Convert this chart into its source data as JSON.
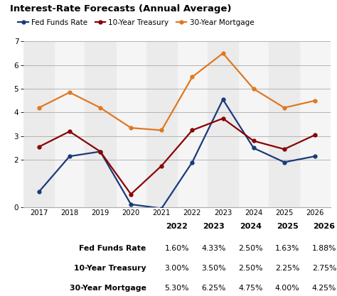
{
  "title": "Interest-Rate Forecasts (Annual Average)",
  "years": [
    2017,
    2018,
    2019,
    2020,
    2021,
    2022,
    2023,
    2024,
    2025,
    2026
  ],
  "fed_funds": [
    0.65,
    2.15,
    2.35,
    0.12,
    -0.05,
    1.9,
    4.55,
    2.5,
    1.9,
    2.15
  ],
  "treasury_10y": [
    2.55,
    3.2,
    2.35,
    0.55,
    1.75,
    3.25,
    3.75,
    2.8,
    2.45,
    3.05
  ],
  "mortgage_30y": [
    4.2,
    4.85,
    4.2,
    3.35,
    3.25,
    5.5,
    6.5,
    5.0,
    4.2,
    4.5
  ],
  "fed_color": "#1a3a7a",
  "treasury_color": "#8b0000",
  "mortgage_color": "#e07820",
  "bg_color": "#ebebeb",
  "stripe_color": "#d0d0d0",
  "white_color": "#f5f5f5",
  "ylim": [
    0,
    7
  ],
  "yticks": [
    0,
    2,
    3,
    4,
    5,
    6,
    7
  ],
  "ytick_labels": [
    "0",
    "2",
    "3",
    "4",
    "5",
    "6",
    "7"
  ],
  "stripe_years": [
    2017,
    2019,
    2021,
    2023,
    2025
  ],
  "white_years": [
    2018,
    2020,
    2022,
    2024,
    2026
  ],
  "table_years": [
    "2022",
    "2023",
    "2024",
    "2025",
    "2026"
  ],
  "table_rows": [
    "Fed Funds Rate",
    "10-Year Treasury",
    "30-Year Mortgage"
  ],
  "table_data": [
    [
      "1.60%",
      "4.33%",
      "2.50%",
      "1.63%",
      "1.88%"
    ],
    [
      "3.00%",
      "3.50%",
      "2.50%",
      "2.25%",
      "2.75%"
    ],
    [
      "5.30%",
      "6.25%",
      "4.75%",
      "4.00%",
      "4.25%"
    ]
  ]
}
